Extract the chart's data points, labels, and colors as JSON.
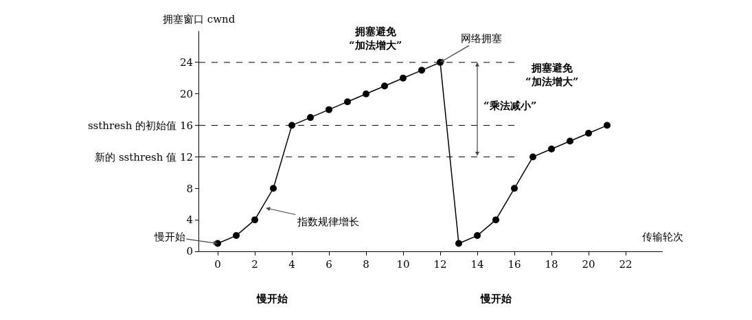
{
  "chart_data": {
    "type": "line",
    "xlabel": "传输轮次",
    "ylabel": "拥塞窗口 cwnd",
    "x": [
      0,
      1,
      2,
      3,
      4,
      5,
      6,
      7,
      8,
      9,
      10,
      11,
      12,
      13,
      14,
      15,
      16,
      17,
      18,
      19,
      20,
      21
    ],
    "series": [
      {
        "color": "#000000",
        "values": [
          1,
          2,
          4,
          8,
          16,
          17,
          18,
          19,
          20,
          21,
          22,
          23,
          24,
          1,
          2,
          4,
          8,
          12,
          13,
          14,
          15,
          16
        ]
      }
    ],
    "xlim": [
      -1,
      24
    ],
    "ylim": [
      0,
      28
    ],
    "xticks": [
      0,
      2,
      4,
      6,
      8,
      10,
      12,
      14,
      16,
      18,
      20,
      22
    ],
    "yticks": [
      0,
      4,
      8,
      {
        "value": 12,
        "label": "新的 ssthresh 值 12"
      },
      {
        "value": 16,
        "label": "ssthresh 的初始值 16"
      },
      20,
      24
    ],
    "ref_lines": [
      {
        "axis": "y",
        "value": 24,
        "line_style": "dashed",
        "color": "#000000"
      },
      {
        "axis": "y",
        "value": 16,
        "line_style": "dashed",
        "color": "#000000"
      },
      {
        "axis": "y",
        "value": 12,
        "line_style": "dashed",
        "color": "#000000"
      }
    ],
    "annotations": [
      "拥塞避免\n“加法增大”",
      {
        "text": "网络拥塞",
        "x": 12,
        "y": 24
      },
      "“乘法减小”",
      "拥塞避免\n“加法增大”",
      {
        "text": "指数规律增长",
        "x": 2.6,
        "y": 5.5
      },
      {
        "text": "慢开始",
        "x": 0,
        "y": 1
      },
      "慢开始",
      "慢开始"
    ],
    "grid": false,
    "marker": "circle",
    "line_style": "solid"
  }
}
